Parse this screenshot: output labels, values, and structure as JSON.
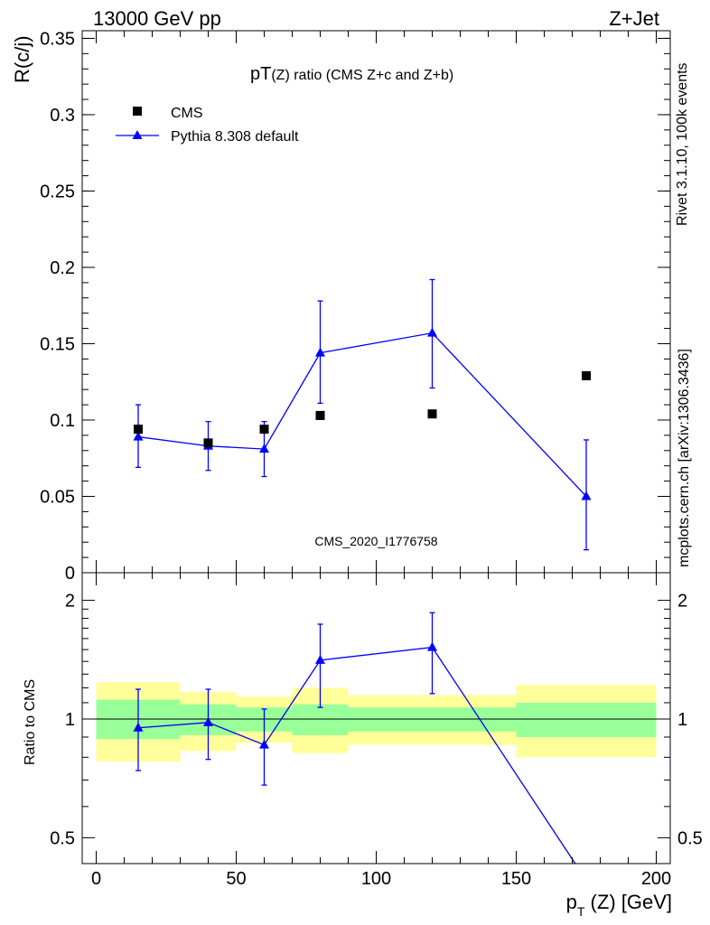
{
  "header": {
    "left": "13000 GeV pp",
    "right": "Z+Jet"
  },
  "side_labels": {
    "rivet": "Rivet 3.1.10,  100k events",
    "source": "mcplots.cern.ch [arXiv:1306.3436]"
  },
  "watermark": "CMS_2020_I1776758",
  "colors": {
    "cms": "#000000",
    "pythia": "#0000ff",
    "band_inner": "#99ff99",
    "band_outer": "#ffff99"
  },
  "chart_data": [
    {
      "type": "scatter",
      "title_main": "pT",
      "title_rest": "(Z) ratio (CMS  Z+c and Z+b)",
      "ylabel": "R(c/j)",
      "xlim": [
        -5,
        205
      ],
      "ylim": [
        0,
        0.355
      ],
      "yticks": [
        0,
        0.05,
        0.1,
        0.15,
        0.2,
        0.25,
        0.3,
        0.35
      ],
      "ytick_labels": [
        "0",
        "0.05",
        "0.1",
        "0.15",
        "0.2",
        "0.25",
        "0.3",
        "0.35"
      ],
      "legend_position": "top-left",
      "series": [
        {
          "name": "CMS",
          "marker": "square",
          "x": [
            15,
            40,
            60,
            80,
            120,
            175
          ],
          "y": [
            0.094,
            0.085,
            0.094,
            0.103,
            0.104,
            0.129
          ]
        },
        {
          "name": "Pythia 8.308 default",
          "marker": "triangle",
          "x": [
            15,
            40,
            60,
            80,
            120,
            175
          ],
          "y": [
            0.089,
            0.083,
            0.081,
            0.144,
            0.157,
            0.05
          ],
          "err_low": [
            0.069,
            0.067,
            0.063,
            0.111,
            0.121,
            0.015
          ],
          "err_high": [
            0.11,
            0.099,
            0.099,
            0.178,
            0.192,
            0.087
          ]
        }
      ]
    },
    {
      "type": "line",
      "ylabel": "Ratio to CMS",
      "xlabel": "p_T (Z) [GeV]",
      "xlim": [
        -5,
        205
      ],
      "ylim": [
        0.43,
        2.35
      ],
      "y_scale": "log",
      "xticks": [
        0,
        50,
        100,
        150,
        200
      ],
      "xtick_labels": [
        "0",
        "50",
        "100",
        "150",
        "200"
      ],
      "yticks": [
        0.5,
        1,
        2
      ],
      "ytick_labels": [
        "0.5",
        "1",
        "2"
      ],
      "bands": [
        {
          "x_low": 0,
          "x_high": 30,
          "inner_low": 0.89,
          "inner_high": 1.12,
          "outer_low": 0.78,
          "outer_high": 1.24
        },
        {
          "x_low": 30,
          "x_high": 50,
          "inner_low": 0.91,
          "inner_high": 1.09,
          "outer_low": 0.83,
          "outer_high": 1.17
        },
        {
          "x_low": 50,
          "x_high": 70,
          "inner_low": 0.93,
          "inner_high": 1.07,
          "outer_low": 0.87,
          "outer_high": 1.14
        },
        {
          "x_low": 70,
          "x_high": 90,
          "inner_low": 0.91,
          "inner_high": 1.09,
          "outer_low": 0.82,
          "outer_high": 1.2
        },
        {
          "x_low": 90,
          "x_high": 150,
          "inner_low": 0.93,
          "inner_high": 1.07,
          "outer_low": 0.86,
          "outer_high": 1.15
        },
        {
          "x_low": 150,
          "x_high": 200,
          "inner_low": 0.9,
          "inner_high": 1.1,
          "outer_low": 0.8,
          "outer_high": 1.22
        }
      ],
      "series": [
        {
          "name": "Pythia 8.308 default",
          "x": [
            15,
            40,
            60,
            80,
            120,
            175
          ],
          "y": [
            0.95,
            0.98,
            0.86,
            1.41,
            1.52,
            0.39
          ],
          "err_low": [
            0.74,
            0.79,
            0.68,
            1.07,
            1.16,
            null
          ],
          "err_high": [
            1.19,
            1.19,
            1.06,
            1.74,
            1.86,
            null
          ]
        }
      ]
    }
  ]
}
